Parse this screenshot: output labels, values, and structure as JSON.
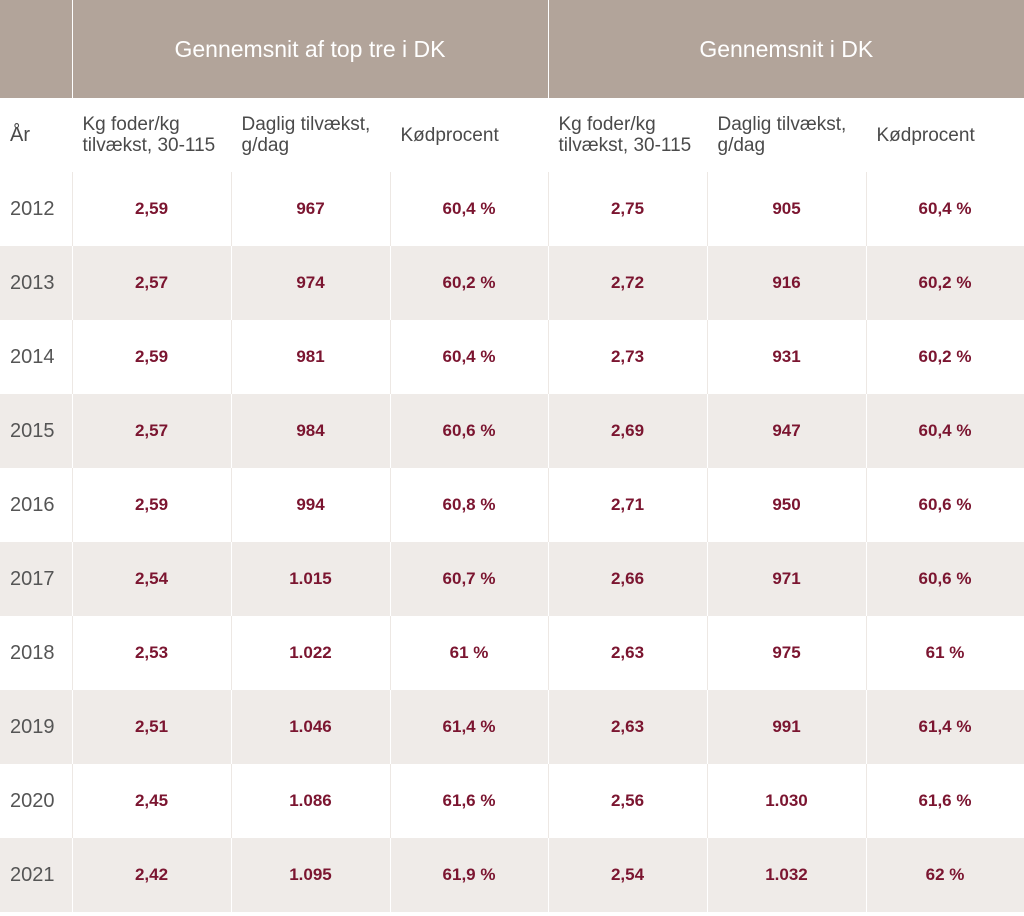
{
  "header": {
    "group_1": "Gennemsnit af top tre i DK",
    "group_2": "Gennemsnit i DK",
    "year": "År",
    "feed": "Kg foder/kg tilvækst, 30-115",
    "gain": "Daglig tilvækst, g/dag",
    "meat": "Kødprocent"
  },
  "rows": [
    [
      "2012",
      "2,59",
      "967",
      "60,4 %",
      "2,75",
      "905",
      "60,4 %"
    ],
    [
      "2013",
      "2,57",
      "974",
      "60,2 %",
      "2,72",
      "916",
      "60,2 %"
    ],
    [
      "2014",
      "2,59",
      "981",
      "60,4 %",
      "2,73",
      "931",
      "60,2 %"
    ],
    [
      "2015",
      "2,57",
      "984",
      "60,6 %",
      "2,69",
      "947",
      "60,4 %"
    ],
    [
      "2016",
      "2,59",
      "994",
      "60,8 %",
      "2,71",
      "950",
      "60,6 %"
    ],
    [
      "2017",
      "2,54",
      "1.015",
      "60,7 %",
      "2,66",
      "971",
      "60,6 %"
    ],
    [
      "2018",
      "2,53",
      "1.022",
      "61 %",
      "2,63",
      "975",
      "61 %"
    ],
    [
      "2019",
      "2,51",
      "1.046",
      "61,4 %",
      "2,63",
      "991",
      "61,4 %"
    ],
    [
      "2020",
      "2,45",
      "1.086",
      "61,6 %",
      "2,56",
      "1.030",
      "61,6 %"
    ],
    [
      "2021",
      "2,42",
      "1.095",
      "61,9 %",
      "2,54",
      "1.032",
      "62 %"
    ]
  ]
}
